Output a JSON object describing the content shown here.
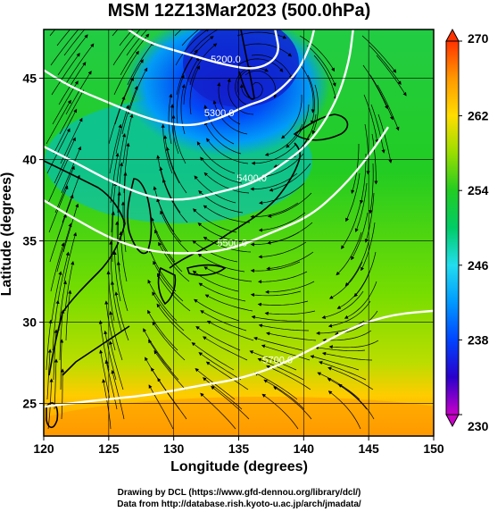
{
  "chart_data": {
    "type": "heatmap",
    "title": "MSM 12Z13Mar2023 (500.0hPa)",
    "xlabel": "Longitude (degrees)",
    "ylabel": "Latitude  (degrees)",
    "xlim": [
      120,
      150
    ],
    "ylim": [
      23,
      48
    ],
    "xticks": [
      "120",
      "125",
      "130",
      "135",
      "140",
      "145",
      "150"
    ],
    "xtick_values": [
      120,
      125,
      130,
      135,
      140,
      145,
      150
    ],
    "yticks": [
      "25",
      "30",
      "35",
      "40",
      "45"
    ],
    "ytick_values": [
      25,
      30,
      35,
      40,
      45
    ],
    "colorbar": {
      "min": 230,
      "max": 270,
      "ticks": [
        "230",
        "238",
        "246",
        "254",
        "262",
        "270"
      ],
      "tick_values": [
        230,
        238,
        246,
        254,
        262,
        270
      ],
      "colors": [
        "#c800c8",
        "#2a00cc",
        "#0044ff",
        "#0099ff",
        "#22ddee",
        "#00cc66",
        "#22cc22",
        "#99dd00",
        "#ffdd00",
        "#ff9900",
        "#ff3300"
      ]
    },
    "contours": [
      {
        "label": "5200.0",
        "points": [
          [
            126.5,
            48
          ],
          [
            128,
            47.2
          ],
          [
            131,
            46.5
          ],
          [
            134,
            45.8
          ],
          [
            136.5,
            45.5
          ],
          [
            138.2,
            46.4
          ],
          [
            137.8,
            48
          ]
        ]
      },
      {
        "label": "5300.0",
        "points": [
          [
            120,
            45.5
          ],
          [
            122,
            44.5
          ],
          [
            125,
            43.5
          ],
          [
            128,
            42.5
          ],
          [
            131,
            42
          ],
          [
            133.5,
            42.5
          ],
          [
            135.5,
            43.3
          ],
          [
            137.5,
            43.8
          ],
          [
            139.5,
            45.3
          ],
          [
            140.5,
            47
          ],
          [
            140.8,
            48
          ]
        ]
      },
      {
        "label": "5400.0",
        "points": [
          [
            120,
            40.8
          ],
          [
            122.5,
            39.8
          ],
          [
            125.5,
            38.5
          ],
          [
            128.5,
            37.6
          ],
          [
            131,
            37.5
          ],
          [
            133.5,
            38
          ],
          [
            136,
            38.5
          ],
          [
            138,
            39.5
          ],
          [
            140.5,
            41
          ],
          [
            142.5,
            43.5
          ],
          [
            143.5,
            46
          ],
          [
            143.8,
            48
          ]
        ]
      },
      {
        "label": "5500.0",
        "points": [
          [
            120,
            37.5
          ],
          [
            122.5,
            36.3
          ],
          [
            125.5,
            35
          ],
          [
            128.5,
            34.3
          ],
          [
            131.5,
            34.2
          ],
          [
            134.5,
            34.5
          ],
          [
            137.5,
            35.5
          ],
          [
            140.5,
            36.5
          ],
          [
            143,
            38.3
          ],
          [
            145,
            40.2
          ],
          [
            146.5,
            42
          ]
        ]
      },
      {
        "label": "5700.0",
        "points": [
          [
            120,
            24.8
          ],
          [
            124,
            25.2
          ],
          [
            128,
            25.5
          ],
          [
            132,
            26.1
          ],
          [
            135,
            26.5
          ],
          [
            138,
            27.3
          ],
          [
            141,
            28.5
          ],
          [
            144,
            29.8
          ],
          [
            147,
            30.5
          ],
          [
            150,
            30.7
          ]
        ]
      }
    ],
    "grid": true,
    "colorbar_placement": "right",
    "credits": [
      "Drawing by DCL (https://www.gfd-dennou.org/library/dcl/)",
      "Data from http://database.rish.kyoto-u.ac.jp/arch/jmadata/"
    ]
  }
}
